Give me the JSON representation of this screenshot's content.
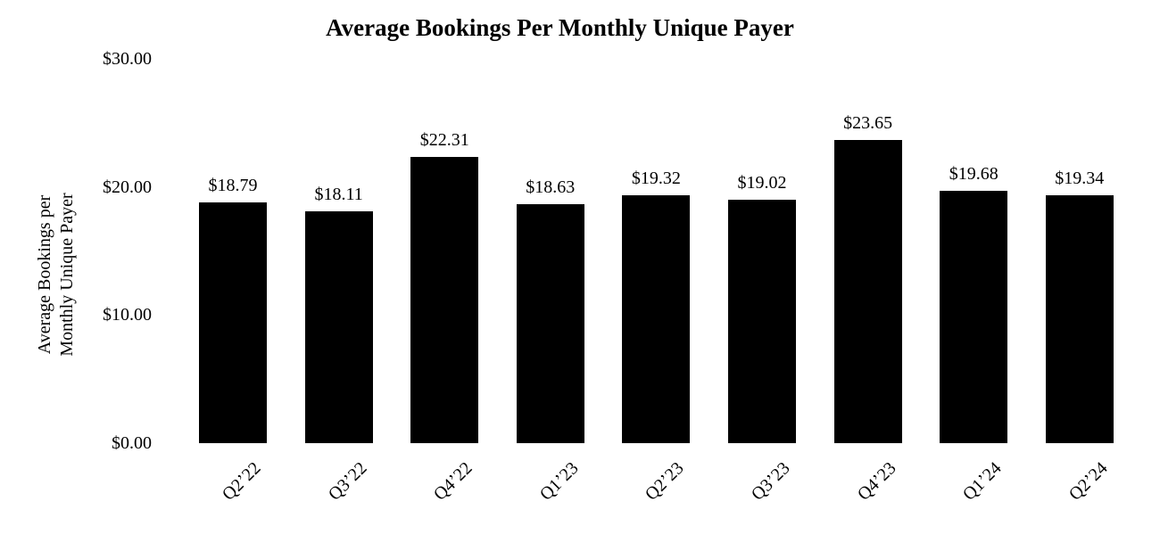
{
  "title": "Average Bookings Per Monthly Unique Payer",
  "y_axis": {
    "title_line1": "Average Bookings per",
    "title_line2": "Monthly Unique Payer"
  },
  "colors": {
    "bar": "#000000",
    "text": "#000000",
    "background": "#ffffff"
  },
  "chart_data": {
    "type": "bar",
    "title": "Average Bookings Per Monthly Unique Payer",
    "categories": [
      "Q2’22",
      "Q3’22",
      "Q4’22",
      "Q1’23",
      "Q2’23",
      "Q3’23",
      "Q4’23",
      "Q1’24",
      "Q2’24"
    ],
    "values": [
      18.79,
      18.11,
      22.31,
      18.63,
      19.32,
      19.02,
      23.65,
      19.68,
      19.34
    ],
    "data_labels": [
      "$18.79",
      "$18.11",
      "$22.31",
      "$18.63",
      "$19.32",
      "$19.02",
      "$23.65",
      "$19.68",
      "$19.34"
    ],
    "y_ticks": [
      {
        "value": 30,
        "label": "$30.00"
      },
      {
        "value": 20,
        "label": "$20.00"
      },
      {
        "value": 10,
        "label": "$10.00"
      },
      {
        "value": 0,
        "label": "$0.00"
      }
    ],
    "xlabel": "",
    "ylabel": "Average Bookings per Monthly Unique Payer",
    "ylim": [
      0,
      30
    ],
    "grid": false,
    "legend": false,
    "bar_color": "#000000",
    "x_tick_rotation_deg": 45
  }
}
